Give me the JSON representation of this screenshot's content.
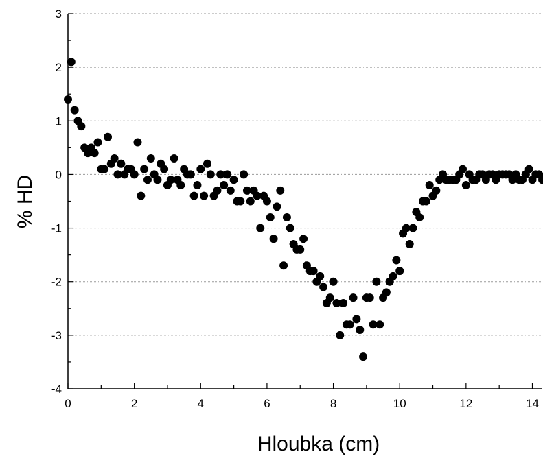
{
  "chart_data": {
    "type": "scatter",
    "title": "",
    "xlabel": "Hloubka (cm)",
    "ylabel": "% HD",
    "xlim": [
      0,
      14.3
    ],
    "ylim": [
      -4,
      3
    ],
    "xticks": [
      0,
      2,
      4,
      6,
      8,
      10,
      12,
      14
    ],
    "yticks": [
      -4,
      -3,
      -2,
      -1,
      0,
      1,
      2,
      3
    ],
    "x_tick_labels": [
      "0",
      "2",
      "4",
      "6",
      "8",
      "10",
      "12",
      "14"
    ],
    "y_tick_labels": [
      "-4",
      "-3",
      "-2",
      "-1",
      "0",
      "1",
      "2",
      "3"
    ],
    "grid": "horizontal dotted",
    "marker_color": "#000000",
    "series": [
      {
        "points": [
          [
            0.0,
            1.4
          ],
          [
            0.1,
            2.1
          ],
          [
            0.2,
            1.2
          ],
          [
            0.3,
            1.0
          ],
          [
            0.4,
            0.9
          ],
          [
            0.5,
            0.5
          ],
          [
            0.6,
            0.4
          ],
          [
            0.7,
            0.5
          ],
          [
            0.8,
            0.4
          ],
          [
            0.9,
            0.6
          ],
          [
            1.0,
            0.1
          ],
          [
            1.1,
            0.1
          ],
          [
            1.2,
            0.7
          ],
          [
            1.3,
            0.2
          ],
          [
            1.4,
            0.3
          ],
          [
            1.5,
            0.0
          ],
          [
            1.6,
            0.2
          ],
          [
            1.7,
            0.0
          ],
          [
            1.8,
            0.1
          ],
          [
            1.9,
            0.1
          ],
          [
            2.0,
            0.0
          ],
          [
            2.1,
            0.6
          ],
          [
            2.2,
            -0.4
          ],
          [
            2.3,
            0.1
          ],
          [
            2.4,
            -0.1
          ],
          [
            2.5,
            0.3
          ],
          [
            2.6,
            0.0
          ],
          [
            2.7,
            -0.1
          ],
          [
            2.8,
            0.2
          ],
          [
            2.9,
            0.1
          ],
          [
            3.0,
            -0.2
          ],
          [
            3.1,
            -0.1
          ],
          [
            3.2,
            0.3
          ],
          [
            3.3,
            -0.1
          ],
          [
            3.4,
            -0.2
          ],
          [
            3.5,
            0.1
          ],
          [
            3.6,
            0.0
          ],
          [
            3.7,
            0.0
          ],
          [
            3.8,
            -0.4
          ],
          [
            3.9,
            -0.2
          ],
          [
            4.0,
            0.1
          ],
          [
            4.1,
            -0.4
          ],
          [
            4.2,
            0.2
          ],
          [
            4.3,
            0.0
          ],
          [
            4.4,
            -0.4
          ],
          [
            4.5,
            -0.3
          ],
          [
            4.6,
            0.0
          ],
          [
            4.7,
            -0.2
          ],
          [
            4.8,
            0.0
          ],
          [
            4.9,
            -0.3
          ],
          [
            5.0,
            -0.1
          ],
          [
            5.1,
            -0.5
          ],
          [
            5.2,
            -0.5
          ],
          [
            5.3,
            0.0
          ],
          [
            5.4,
            -0.3
          ],
          [
            5.5,
            -0.5
          ],
          [
            5.6,
            -0.3
          ],
          [
            5.7,
            -0.4
          ],
          [
            5.8,
            -1.0
          ],
          [
            5.9,
            -0.4
          ],
          [
            6.0,
            -0.5
          ],
          [
            6.1,
            -0.8
          ],
          [
            6.2,
            -1.2
          ],
          [
            6.3,
            -0.6
          ],
          [
            6.4,
            -0.3
          ],
          [
            6.5,
            -1.7
          ],
          [
            6.6,
            -0.8
          ],
          [
            6.7,
            -1.0
          ],
          [
            6.8,
            -1.3
          ],
          [
            6.9,
            -1.4
          ],
          [
            7.0,
            -1.4
          ],
          [
            7.1,
            -1.2
          ],
          [
            7.2,
            -1.7
          ],
          [
            7.3,
            -1.8
          ],
          [
            7.4,
            -1.8
          ],
          [
            7.5,
            -2.0
          ],
          [
            7.6,
            -1.9
          ],
          [
            7.7,
            -2.1
          ],
          [
            7.8,
            -2.4
          ],
          [
            7.9,
            -2.3
          ],
          [
            8.0,
            -2.0
          ],
          [
            8.1,
            -2.4
          ],
          [
            8.2,
            -3.0
          ],
          [
            8.3,
            -2.4
          ],
          [
            8.4,
            -2.8
          ],
          [
            8.5,
            -2.8
          ],
          [
            8.6,
            -2.3
          ],
          [
            8.7,
            -2.7
          ],
          [
            8.8,
            -2.9
          ],
          [
            8.9,
            -3.4
          ],
          [
            9.0,
            -2.3
          ],
          [
            9.1,
            -2.3
          ],
          [
            9.2,
            -2.8
          ],
          [
            9.3,
            -2.0
          ],
          [
            9.4,
            -2.8
          ],
          [
            9.5,
            -2.3
          ],
          [
            9.6,
            -2.2
          ],
          [
            9.7,
            -2.0
          ],
          [
            9.8,
            -1.9
          ],
          [
            9.9,
            -1.6
          ],
          [
            10.0,
            -1.8
          ],
          [
            10.1,
            -1.1
          ],
          [
            10.2,
            -1.0
          ],
          [
            10.3,
            -1.3
          ],
          [
            10.4,
            -1.0
          ],
          [
            10.5,
            -0.7
          ],
          [
            10.6,
            -0.8
          ],
          [
            10.7,
            -0.5
          ],
          [
            10.8,
            -0.5
          ],
          [
            10.9,
            -0.2
          ],
          [
            11.0,
            -0.4
          ],
          [
            11.1,
            -0.3
          ],
          [
            11.2,
            -0.1
          ],
          [
            11.3,
            0.0
          ],
          [
            11.4,
            -0.1
          ],
          [
            11.5,
            -0.1
          ],
          [
            11.6,
            -0.1
          ],
          [
            11.7,
            -0.1
          ],
          [
            11.8,
            0.0
          ],
          [
            11.9,
            0.1
          ],
          [
            12.0,
            -0.2
          ],
          [
            12.1,
            0.0
          ],
          [
            12.2,
            -0.1
          ],
          [
            12.3,
            -0.1
          ],
          [
            12.4,
            0.0
          ],
          [
            12.5,
            0.0
          ],
          [
            12.6,
            -0.1
          ],
          [
            12.7,
            0.0
          ],
          [
            12.8,
            0.0
          ],
          [
            12.9,
            -0.1
          ],
          [
            13.0,
            0.0
          ],
          [
            13.1,
            0.0
          ],
          [
            13.2,
            0.0
          ],
          [
            13.3,
            0.0
          ],
          [
            13.4,
            -0.1
          ],
          [
            13.5,
            0.0
          ],
          [
            13.6,
            -0.1
          ],
          [
            13.7,
            -0.1
          ],
          [
            13.8,
            0.0
          ],
          [
            13.9,
            0.1
          ],
          [
            14.0,
            -0.1
          ],
          [
            14.1,
            0.0
          ],
          [
            14.2,
            0.0
          ],
          [
            14.3,
            -0.1
          ]
        ]
      }
    ]
  }
}
